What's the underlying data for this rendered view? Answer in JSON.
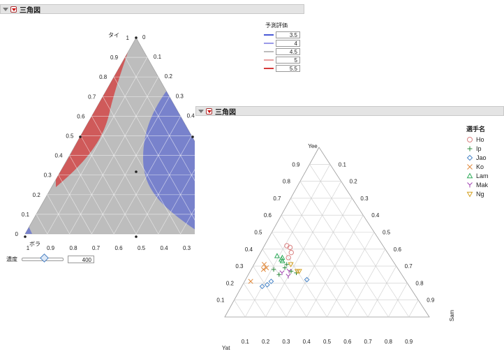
{
  "panel1": {
    "title": "三角図",
    "legend": {
      "title": "予測評価",
      "items": [
        {
          "value": "3.5",
          "color": "#4a5ad6"
        },
        {
          "value": "4",
          "color": "#9a9ae8"
        },
        {
          "value": "4.5",
          "color": "#bdbdbd"
        },
        {
          "value": "5",
          "color": "#e8a0a0"
        },
        {
          "value": "5.5",
          "color": "#d63a3a"
        }
      ]
    },
    "axes": {
      "left_label": "タイ",
      "bottom_label": "ボラ",
      "left_ticks": [
        "0",
        "0.1",
        "0.2",
        "0.3",
        "0.4",
        "0.5",
        "0.6",
        "0.7",
        "0.8",
        "0.9",
        "1"
      ],
      "right_ticks": [
        "0",
        "0.1",
        "0.2",
        "0.3",
        "0.4"
      ],
      "bottom_ticks": [
        "1",
        "0.9",
        "0.8",
        "0.7",
        "0.6",
        "0.5",
        "0.4",
        "0.3"
      ]
    },
    "slider": {
      "label": "濃度",
      "value": "400"
    }
  },
  "panel2": {
    "title": "三角図",
    "axes": {
      "top_label": "Yee",
      "left_label": "Yat",
      "right_label": "Sam",
      "ticks": [
        "0.1",
        "0.2",
        "0.3",
        "0.4",
        "0.5",
        "0.6",
        "0.7",
        "0.8",
        "0.9"
      ]
    },
    "legend": {
      "title": "選手名",
      "items": [
        {
          "name": "Ho",
          "marker": "circle",
          "color": "#d98080"
        },
        {
          "name": "Ip",
          "marker": "plus",
          "color": "#2e8b3e"
        },
        {
          "name": "Jao",
          "marker": "diamond",
          "color": "#4a86c8"
        },
        {
          "name": "Ko",
          "marker": "x",
          "color": "#e0883a"
        },
        {
          "name": "Lam",
          "marker": "triangle",
          "color": "#2eaa5a"
        },
        {
          "name": "Mak",
          "marker": "y",
          "color": "#a040b0"
        },
        {
          "name": "Ng",
          "marker": "invtriangle",
          "color": "#d4a020"
        }
      ]
    }
  },
  "chart_data": [
    {
      "type": "ternary-contour",
      "contour_levels": [
        3.5,
        4,
        4.5,
        5,
        5.5
      ],
      "vertex_labels": {
        "top": "タイ",
        "left": "ボラ"
      }
    },
    {
      "type": "scatter",
      "vertex_labels": {
        "top": "Yee",
        "left": "Yat",
        "right": "Sam"
      },
      "series": [
        {
          "name": "Ho",
          "points": [
            [
              0.38,
              0.47,
              0.15
            ],
            [
              0.35,
              0.5,
              0.15
            ],
            [
              0.41,
              0.46,
              0.13
            ],
            [
              0.42,
              0.47,
              0.11
            ]
          ]
        },
        {
          "name": "Ip",
          "points": [
            [
              0.31,
              0.53,
              0.16
            ],
            [
              0.29,
              0.55,
              0.16
            ],
            [
              0.25,
              0.6,
              0.15
            ],
            [
              0.27,
              0.53,
              0.2
            ],
            [
              0.26,
              0.51,
              0.23
            ],
            [
              0.28,
              0.61,
              0.11
            ]
          ]
        },
        {
          "name": "Jao",
          "points": [
            [
              0.21,
              0.66,
              0.13
            ],
            [
              0.19,
              0.69,
              0.12
            ],
            [
              0.18,
              0.72,
              0.1
            ],
            [
              0.22,
              0.48,
              0.3
            ]
          ]
        },
        {
          "name": "Ko",
          "points": [
            [
              0.31,
              0.64,
              0.05
            ],
            [
              0.29,
              0.64,
              0.07
            ],
            [
              0.28,
              0.66,
              0.06
            ],
            [
              0.21,
              0.76,
              0.03
            ]
          ]
        },
        {
          "name": "Lam",
          "points": [
            [
              0.35,
              0.53,
              0.12
            ],
            [
              0.33,
              0.54,
              0.13
            ],
            [
              0.34,
              0.54,
              0.12
            ],
            [
              0.36,
              0.55,
              0.09
            ]
          ]
        },
        {
          "name": "Mak",
          "points": [
            [
              0.27,
              0.54,
              0.19
            ],
            [
              0.24,
              0.56,
              0.2
            ],
            [
              0.26,
              0.58,
              0.16
            ]
          ]
        },
        {
          "name": "Ng",
          "points": [
            [
              0.31,
              0.51,
              0.18
            ],
            [
              0.27,
              0.5,
              0.23
            ],
            [
              0.27,
              0.49,
              0.24
            ]
          ]
        }
      ]
    }
  ]
}
